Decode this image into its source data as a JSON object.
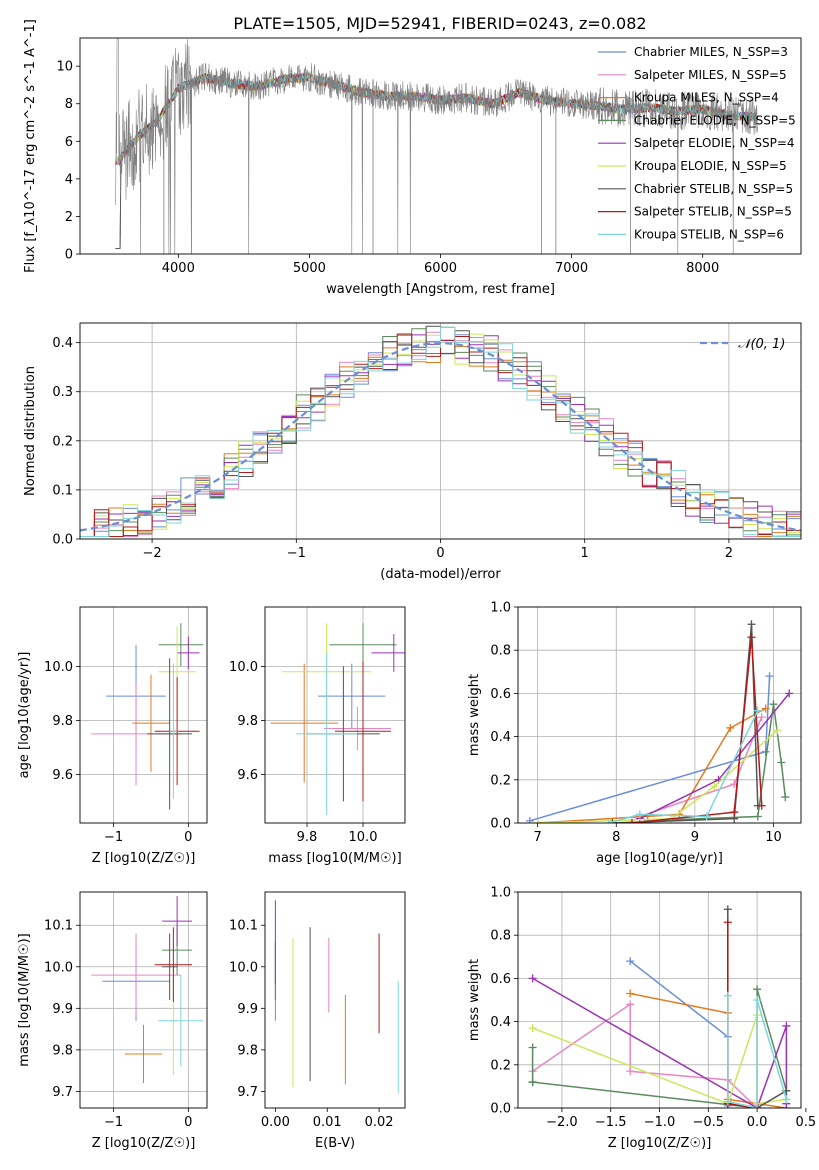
{
  "figure": {
    "title": "PLATE=1505, MJD=52941, FIBERID=0243, z=0.082"
  },
  "series_colors": [
    "#6a8ed8",
    "#e986c0",
    "#e07b20",
    "#5b8a5e",
    "#9b32b5",
    "#cfe65a",
    "#555555",
    "#b31b1b",
    "#7fd6da"
  ],
  "chart_data": [
    {
      "id": "spectrum",
      "type": "line",
      "title": "PLATE=1505, MJD=52941, FIBERID=0243, z=0.082",
      "xlabel": "wavelength [Angstrom, rest frame]",
      "ylabel": "Flux [f_λ10^-17 erg cm^-2 s^-1 A^-1]",
      "xlim": [
        3250,
        8750
      ],
      "ylim": [
        0,
        11.5
      ],
      "xticks": [
        "4000",
        "5000",
        "6000",
        "7000",
        "8000"
      ],
      "yticks": [
        "0",
        "2",
        "4",
        "6",
        "8",
        "10"
      ],
      "legend_position": "right",
      "legend": [
        "Chabrier MILES, N_SSP=3",
        "Salpeter MILES, N_SSP=5",
        "Kroupa MILES, N_SSP=4",
        "Chabrier ELODIE, N_SSP=5",
        "Salpeter ELODIE, N_SSP=4",
        "Kroupa ELODIE, N_SSP=5",
        "Chabrier STELIB, N_SSP=5",
        "Salpeter STELIB, N_SSP=5",
        "Kroupa STELIB, N_SSP=6"
      ],
      "data_color": "#808080",
      "spectrum_x": [
        3550,
        3700,
        3850,
        4000,
        4200,
        4400,
        4600,
        4800,
        5000,
        5200,
        5400,
        5600,
        5800,
        6000,
        6200,
        6400,
        6600,
        6800,
        7000,
        7200,
        7400,
        7600,
        7800,
        8000,
        8200,
        8400
      ],
      "spectrum_y": [
        5.0,
        6.3,
        7.2,
        8.8,
        9.4,
        9.1,
        8.9,
        9.3,
        9.4,
        9.0,
        8.6,
        8.4,
        8.4,
        8.2,
        8.3,
        8.0,
        8.6,
        8.2,
        8.0,
        7.9,
        7.7,
        7.8,
        7.6,
        7.7,
        7.4,
        7.3
      ],
      "grid": false
    },
    {
      "id": "residuals",
      "type": "histogram",
      "xlabel": "(data-model)/error",
      "ylabel": "Normed distribution",
      "xlim": [
        -2.5,
        2.5
      ],
      "ylim": [
        0,
        0.44
      ],
      "xticks": [
        "−2",
        "−1",
        "0",
        "1",
        "2"
      ],
      "yticks": [
        "0.0",
        "0.1",
        "0.2",
        "0.3",
        "0.4"
      ],
      "legend": [
        "𝒩(0, 1)"
      ],
      "legend_position": "top-right",
      "bin_edges_start": -2.5,
      "bin_width": 0.1,
      "grid": true
    },
    {
      "id": "age_vs_Z",
      "type": "errorbar",
      "xlabel": "Z [log10(Z/Z☉)]",
      "ylabel": "age  [log10(age/yr)]",
      "xlim": [
        -1.45,
        0.25
      ],
      "ylim": [
        9.42,
        10.22
      ],
      "xticks": [
        "−1",
        "0"
      ],
      "yticks": [
        "9.6",
        "9.8",
        "10.0"
      ],
      "points": [
        {
          "x": -0.7,
          "y": 9.89,
          "xerr": 0.4,
          "yerr": 0.19
        },
        {
          "x": -0.7,
          "y": 9.75,
          "xerr": 0.6,
          "yerr": 0.19
        },
        {
          "x": -0.5,
          "y": 9.79,
          "xerr": 0.25,
          "yerr": 0.18
        },
        {
          "x": -0.1,
          "y": 10.08,
          "xerr": 0.3,
          "yerr": 0.08
        },
        {
          "x": 0.0,
          "y": 10.05,
          "xerr": 0.15,
          "yerr": 0.06
        },
        {
          "x": -0.15,
          "y": 9.98,
          "xerr": 0.25,
          "yerr": 0.17
        },
        {
          "x": -0.25,
          "y": 9.75,
          "xerr": 0.3,
          "yerr": 0.28
        },
        {
          "x": -0.15,
          "y": 9.76,
          "xerr": 0.3,
          "yerr": 0.2
        },
        {
          "x": -0.2,
          "y": 9.76,
          "xerr": 0.05,
          "yerr": 0.25
        }
      ],
      "grid": true
    },
    {
      "id": "age_vs_mass",
      "type": "errorbar",
      "xlabel": "mass [log10(M/M☉)]",
      "ylabel": "",
      "xlim": [
        9.65,
        10.15
      ],
      "ylim": [
        9.42,
        10.22
      ],
      "xticks": [
        "9.8",
        "10.0"
      ],
      "yticks": [
        "9.6",
        "9.8",
        "10.0"
      ],
      "points": [
        {
          "x": 9.96,
          "y": 9.89,
          "xerr": 0.12,
          "yerr": 0.12
        },
        {
          "x": 9.98,
          "y": 9.77,
          "xerr": 0.12,
          "yerr": 0.08
        },
        {
          "x": 9.79,
          "y": 9.79,
          "xerr": 0.12,
          "yerr": 0.22
        },
        {
          "x": 10.0,
          "y": 10.08,
          "xerr": 0.12,
          "yerr": 0.08
        },
        {
          "x": 10.11,
          "y": 10.05,
          "xerr": 0.08,
          "yerr": 0.07
        },
        {
          "x": 9.87,
          "y": 9.98,
          "xerr": 0.16,
          "yerr": 0.18
        },
        {
          "x": 9.93,
          "y": 9.75,
          "xerr": 0.13,
          "yerr": 0.25
        },
        {
          "x": 10.0,
          "y": 9.76,
          "xerr": 0.1,
          "yerr": 0.26
        },
        {
          "x": 9.87,
          "y": 9.75,
          "xerr": 0.11,
          "yerr": 0.3
        }
      ],
      "grid": true
    },
    {
      "id": "weight_vs_age",
      "type": "line",
      "xlabel": "age  [log10(age/yr)]",
      "ylabel": "mass weight",
      "xlim": [
        6.75,
        10.35
      ],
      "ylim": [
        0,
        1.0
      ],
      "xticks": [
        "7",
        "8",
        "9",
        "10"
      ],
      "yticks": [
        "0.0",
        "0.2",
        "0.4",
        "0.6",
        "0.8",
        "1.0"
      ],
      "series": [
        {
          "x": [
            6.9,
            9.9,
            9.95
          ],
          "y": [
            0.01,
            0.33,
            0.68
          ]
        },
        {
          "x": [
            8.3,
            9.5,
            9.85
          ],
          "y": [
            0.03,
            0.18,
            0.49
          ]
        },
        {
          "x": [
            7.0,
            8.8,
            9.45,
            9.9
          ],
          "y": [
            0.0,
            0.04,
            0.44,
            0.53
          ]
        },
        {
          "x": [
            8.4,
            9.8,
            10.0,
            10.1,
            10.15
          ],
          "y": [
            0.01,
            0.03,
            0.55,
            0.28,
            0.12
          ]
        },
        {
          "x": [
            8.3,
            9.3,
            10.2
          ],
          "y": [
            0.02,
            0.2,
            0.6
          ]
        },
        {
          "x": [
            7.0,
            8.7,
            9.25,
            10.05
          ],
          "y": [
            0.0,
            0.02,
            0.17,
            0.43
          ]
        },
        {
          "x": [
            7.95,
            9.5,
            9.72,
            9.8
          ],
          "y": [
            0.0,
            0.02,
            0.92,
            0.08
          ]
        },
        {
          "x": [
            8.2,
            9.5,
            9.72,
            9.85
          ],
          "y": [
            0.0,
            0.05,
            0.86,
            0.08
          ]
        },
        {
          "x": [
            7.9,
            8.3,
            9.15,
            9.8
          ],
          "y": [
            0.0,
            0.04,
            0.03,
            0.52
          ]
        }
      ],
      "grid": true
    },
    {
      "id": "mass_vs_Z",
      "type": "errorbar",
      "xlabel": "Z [log10(Z/Z☉)]",
      "ylabel": "mass [log10(M/M☉)]",
      "xlim": [
        -1.45,
        0.25
      ],
      "ylim": [
        9.66,
        10.18
      ],
      "xticks": [
        "−1",
        "0"
      ],
      "yticks": [
        "9.7",
        "9.8",
        "9.9",
        "10.0",
        "10.1"
      ],
      "points": [
        {
          "x": -0.7,
          "y": 9.965,
          "xerr": 0.45,
          "yerr": 0.095
        },
        {
          "x": -0.7,
          "y": 9.98,
          "xerr": 0.6,
          "yerr": 0.1
        },
        {
          "x": -0.6,
          "y": 9.79,
          "xerr": 0.25,
          "yerr": 0.07
        },
        {
          "x": -0.15,
          "y": 10.04,
          "xerr": 0.2,
          "yerr": 0.06
        },
        {
          "x": -0.15,
          "y": 10.11,
          "xerr": 0.2,
          "yerr": 0.06
        },
        {
          "x": -0.2,
          "y": 9.87,
          "xerr": 0.05,
          "yerr": 0.13
        },
        {
          "x": -0.25,
          "y": 10.0,
          "xerr": 0.1,
          "yerr": 0.08
        },
        {
          "x": -0.2,
          "y": 10.005,
          "xerr": 0.25,
          "yerr": 0.09
        },
        {
          "x": -0.1,
          "y": 9.87,
          "xerr": 0.3,
          "yerr": 0.11
        }
      ],
      "grid": true
    },
    {
      "id": "mass_vs_ebv",
      "type": "errorbar",
      "xlabel": "E(B-V)",
      "ylabel": "",
      "xlim": [
        -0.002,
        0.025
      ],
      "ylim": [
        9.66,
        10.18
      ],
      "xticks": [
        "0.00",
        "0.01",
        "0.02"
      ],
      "yticks": [
        "9.7",
        "9.8",
        "9.9",
        "10.0",
        "10.1"
      ],
      "points": [
        {
          "x": 0.0,
          "y": 9.965,
          "xerr": 0,
          "yerr": 0.095
        },
        {
          "x": 0.0103,
          "y": 9.98,
          "xerr": 0,
          "yerr": 0.09
        },
        {
          "x": 0.0135,
          "y": 9.825,
          "xerr": 0,
          "yerr": 0.108
        },
        {
          "x": 0.0,
          "y": 9.99,
          "xerr": 0,
          "yerr": 0.07
        },
        {
          "x": 0.0,
          "y": 10.06,
          "xerr": 0,
          "yerr": 0.1
        },
        {
          "x": 0.0034,
          "y": 9.89,
          "xerr": 0,
          "yerr": 0.18
        },
        {
          "x": 0.0067,
          "y": 9.91,
          "xerr": 0,
          "yerr": 0.185
        },
        {
          "x": 0.02,
          "y": 9.96,
          "xerr": 0,
          "yerr": 0.12
        },
        {
          "x": 0.0237,
          "y": 9.83,
          "xerr": 0,
          "yerr": 0.135
        }
      ],
      "grid": false
    },
    {
      "id": "weight_vs_Z",
      "type": "line",
      "xlabel": "Z [log10(Z/Z☉)]",
      "ylabel": "mass weight",
      "xlim": [
        -2.45,
        0.45
      ],
      "ylim": [
        0,
        1.0
      ],
      "xticks": [
        "−2.0",
        "−1.5",
        "−1.0",
        "−0.5",
        "0.0",
        "0.5"
      ],
      "yticks": [
        "0.0",
        "0.2",
        "0.4",
        "0.6",
        "0.8",
        "1.0"
      ],
      "series": [
        {
          "x": [
            -1.3,
            -0.3,
            -0.3
          ],
          "y": [
            0.68,
            0.33,
            0.01
          ]
        },
        {
          "x": [
            -2.3,
            -1.3,
            -1.3,
            -0.3,
            0.0
          ],
          "y": [
            0.17,
            0.48,
            0.17,
            0.13,
            0.0
          ]
        },
        {
          "x": [
            -1.3,
            -0.3,
            -0.3,
            0.3
          ],
          "y": [
            0.53,
            0.44,
            0.04,
            0.0
          ]
        },
        {
          "x": [
            -2.3,
            -2.3,
            -2.3,
            0.0,
            0.0,
            0.3
          ],
          "y": [
            0.28,
            0.12,
            0.12,
            0.0,
            0.55,
            0.08
          ]
        },
        {
          "x": [
            -2.3,
            0.0,
            0.3,
            0.3
          ],
          "y": [
            0.6,
            0.0,
            0.38,
            0.02
          ]
        },
        {
          "x": [
            -2.3,
            -0.3,
            0.0,
            0.0,
            0.3
          ],
          "y": [
            0.37,
            0.02,
            0.43,
            0.02,
            0.04
          ]
        },
        {
          "x": [
            -0.3,
            -0.3,
            0.0,
            0.3
          ],
          "y": [
            0.92,
            0.02,
            0.0,
            0.08
          ]
        },
        {
          "x": [
            -0.3,
            -0.3,
            0.0
          ],
          "y": [
            0.86,
            0.02,
            0.0
          ]
        },
        {
          "x": [
            -0.3,
            -0.3,
            0.0,
            0.0,
            0.3
          ],
          "y": [
            0.52,
            0.03,
            0.0,
            0.5,
            0.04
          ]
        }
      ],
      "grid": true
    }
  ]
}
